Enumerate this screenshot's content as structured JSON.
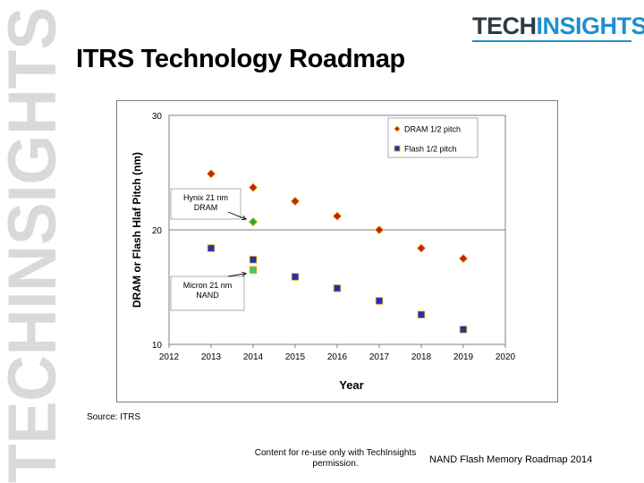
{
  "slide": {
    "watermark_text": "TECHINSIGHTS",
    "logo": {
      "part1": "TECH",
      "part2": "INSIGHTS"
    },
    "title": "ITRS Technology Roadmap",
    "source": "Source: ITRS",
    "footer_permission": "Content for re-use only with TechInsights permission.",
    "footer_deck": "NAND Flash Memory Roadmap 2014"
  },
  "colors": {
    "dram": "#c0201f",
    "dram_outline": "#e8b000",
    "flash": "#1f2fbf",
    "flash_outline": "#e8b000",
    "hynix_point": "#1fa83c",
    "micron_point": "#4fc26a",
    "logo_blue": "#1e8fd0",
    "logo_dark": "#2f3a45"
  },
  "chart_data": {
    "type": "scatter",
    "xlabel": "Year",
    "ylabel": "DRAM or Flash Hlaf Pitch (nm)",
    "xlim": [
      2012,
      2020
    ],
    "ylim": [
      10,
      30
    ],
    "x_ticks": [
      "2012",
      "2013",
      "2014",
      "2015",
      "2016",
      "2017",
      "2018",
      "2019",
      "2020"
    ],
    "y_ticks": [
      "10",
      "20",
      "30"
    ],
    "grid": "horizontal",
    "legend_position": "top-right",
    "series": [
      {
        "name": "DRAM 1/2 pitch",
        "marker": "diamond",
        "points": [
          {
            "x": 2013,
            "y": 24.9
          },
          {
            "x": 2014,
            "y": 23.7
          },
          {
            "x": 2015,
            "y": 22.5
          },
          {
            "x": 2016,
            "y": 21.2
          },
          {
            "x": 2017,
            "y": 20.0
          },
          {
            "x": 2018,
            "y": 18.4
          },
          {
            "x": 2019,
            "y": 17.5
          }
        ]
      },
      {
        "name": "Flash 1/2 pitch",
        "marker": "square",
        "points": [
          {
            "x": 2013,
            "y": 18.4
          },
          {
            "x": 2014,
            "y": 17.4
          },
          {
            "x": 2015,
            "y": 15.9
          },
          {
            "x": 2016,
            "y": 14.9
          },
          {
            "x": 2017,
            "y": 13.8
          },
          {
            "x": 2018,
            "y": 12.6
          },
          {
            "x": 2019,
            "y": 11.3
          }
        ]
      }
    ],
    "annotations": [
      {
        "label_lines": [
          "Hynix 21 nm",
          "DRAM"
        ],
        "point": {
          "x": 2014,
          "y": 20.7
        },
        "marker": "diamond"
      },
      {
        "label_lines": [
          "Micron 21 nm",
          "NAND"
        ],
        "point": {
          "x": 2014,
          "y": 16.5
        },
        "marker": "square"
      }
    ]
  }
}
